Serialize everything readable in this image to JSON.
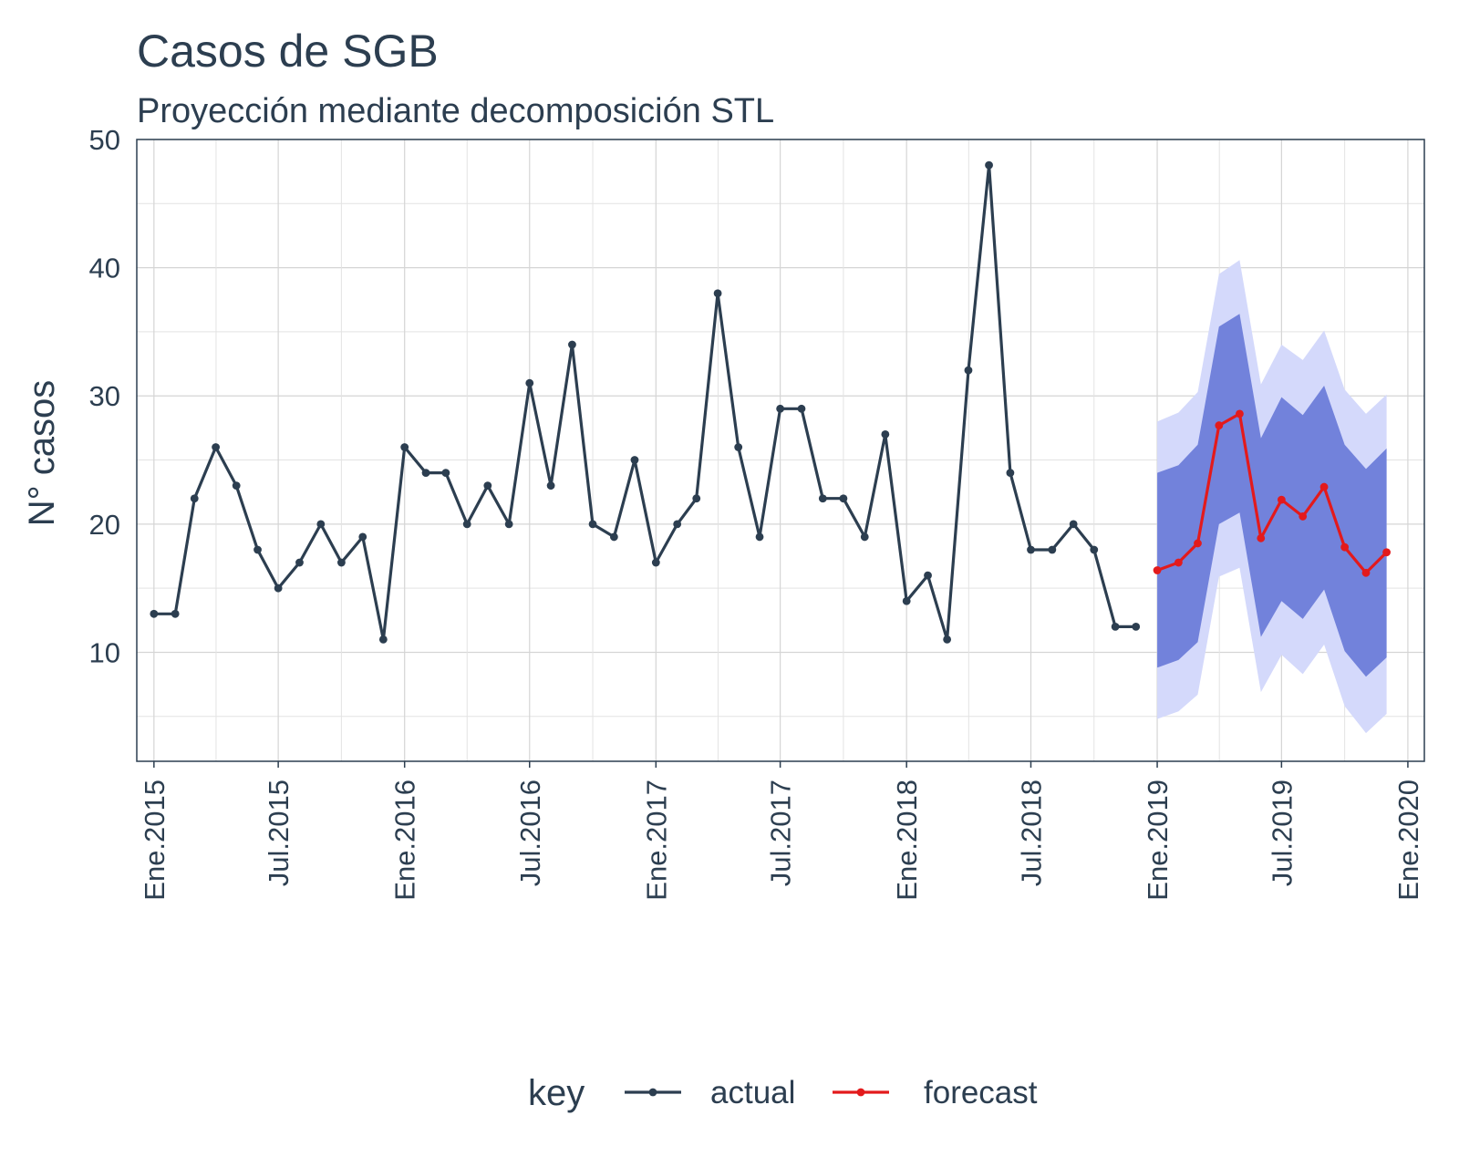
{
  "chart_data": {
    "type": "line",
    "title": "Casos de SGB",
    "subtitle": "Proyección mediante decomposición STL",
    "xlabel": "",
    "ylabel": "N° casos",
    "ylim": [
      1.5,
      50
    ],
    "yticks": [
      10,
      20,
      30,
      40,
      50
    ],
    "x_range": [
      "2014-12-07",
      "2020-01-25"
    ],
    "xticks": [
      {
        "date": "2015-01-01",
        "label": "Ene.2015"
      },
      {
        "date": "2015-07-01",
        "label": "Jul.2015"
      },
      {
        "date": "2016-01-01",
        "label": "Ene.2016"
      },
      {
        "date": "2016-07-01",
        "label": "Jul.2016"
      },
      {
        "date": "2017-01-01",
        "label": "Ene.2017"
      },
      {
        "date": "2017-07-01",
        "label": "Jul.2017"
      },
      {
        "date": "2018-01-01",
        "label": "Ene.2018"
      },
      {
        "date": "2018-07-01",
        "label": "Jul.2018"
      },
      {
        "date": "2019-01-01",
        "label": "Ene.2019"
      },
      {
        "date": "2019-07-01",
        "label": "Jul.2019"
      },
      {
        "date": "2020-01-01",
        "label": "Ene.2020"
      }
    ],
    "grid": true,
    "legend": {
      "title": "key",
      "position": "bottom"
    },
    "series": [
      {
        "name": "actual",
        "color": "#2c3e50",
        "x": [
          "2015-01-01",
          "2015-02-01",
          "2015-03-01",
          "2015-04-01",
          "2015-05-01",
          "2015-06-01",
          "2015-07-01",
          "2015-08-01",
          "2015-09-01",
          "2015-10-01",
          "2015-11-01",
          "2015-12-01",
          "2016-01-01",
          "2016-02-01",
          "2016-03-01",
          "2016-04-01",
          "2016-05-01",
          "2016-06-01",
          "2016-07-01",
          "2016-08-01",
          "2016-09-01",
          "2016-10-01",
          "2016-11-01",
          "2016-12-01",
          "2017-01-01",
          "2017-02-01",
          "2017-03-01",
          "2017-04-01",
          "2017-05-01",
          "2017-06-01",
          "2017-07-01",
          "2017-08-01",
          "2017-09-01",
          "2017-10-01",
          "2017-11-01",
          "2017-12-01",
          "2018-01-01",
          "2018-02-01",
          "2018-03-01",
          "2018-04-01",
          "2018-05-01",
          "2018-06-01",
          "2018-07-01",
          "2018-08-01",
          "2018-09-01",
          "2018-10-01",
          "2018-11-01",
          "2018-12-01"
        ],
        "values": [
          13,
          13,
          22,
          26,
          23,
          18,
          15,
          17,
          20,
          17,
          19,
          11,
          26,
          24,
          24,
          20,
          23,
          20,
          31,
          23,
          34,
          20,
          19,
          25,
          17,
          20,
          22,
          38,
          26,
          19,
          29,
          29,
          22,
          22,
          19,
          27,
          14,
          16,
          11,
          32,
          48,
          24,
          18,
          18,
          20,
          18,
          12,
          12
        ]
      },
      {
        "name": "forecast",
        "color": "#e31a1c",
        "x": [
          "2019-01-01",
          "2019-02-01",
          "2019-03-01",
          "2019-04-01",
          "2019-05-01",
          "2019-06-01",
          "2019-07-01",
          "2019-08-01",
          "2019-09-01",
          "2019-10-01",
          "2019-11-01",
          "2019-12-01"
        ],
        "values": [
          16.4,
          17.0,
          18.5,
          27.7,
          28.6,
          18.9,
          21.9,
          20.6,
          22.9,
          18.2,
          16.2,
          17.8
        ],
        "lo_80": [
          8.8,
          9.4,
          10.8,
          20.0,
          20.9,
          11.2,
          14.0,
          12.6,
          14.9,
          10.1,
          8.1,
          9.6
        ],
        "hi_80": [
          24.0,
          24.6,
          26.2,
          35.4,
          36.4,
          26.7,
          29.9,
          28.5,
          30.8,
          26.2,
          24.3,
          25.9
        ],
        "lo_95": [
          4.8,
          5.4,
          6.7,
          15.9,
          16.6,
          6.9,
          9.8,
          8.3,
          10.6,
          5.8,
          3.7,
          5.2
        ],
        "hi_95": [
          28.0,
          28.7,
          30.3,
          39.5,
          40.6,
          30.9,
          34.0,
          32.8,
          35.1,
          30.5,
          28.6,
          30.1
        ],
        "band_colors": {
          "band_80": "#7282db",
          "band_95": "#d4d9fb"
        }
      }
    ]
  }
}
